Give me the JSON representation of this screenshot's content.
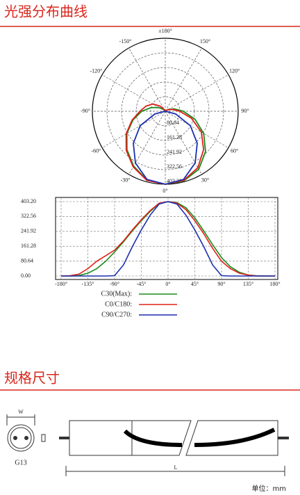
{
  "header1": "光强分布曲线",
  "header2": "规格尺寸",
  "chart_data": [
    {
      "type": "polar",
      "x": [
        -180,
        -165,
        -150,
        -135,
        -120,
        -105,
        -90,
        -75,
        -60,
        -45,
        -30,
        -15,
        0,
        15,
        30,
        45,
        60,
        75,
        90,
        105,
        120,
        135,
        150,
        165,
        180
      ],
      "rlim": [
        0,
        403.2
      ],
      "rticks": [
        80.64,
        161.28,
        241.92,
        322.56,
        {
          "value": 403.2,
          "label": "403.20"
        }
      ],
      "angleticks": [
        {
          "value": 180,
          "label": "±180°"
        },
        {
          "value": -150,
          "label": "-150°"
        },
        {
          "value": 150,
          "label": "150°"
        },
        {
          "value": -120,
          "label": "-120°"
        },
        {
          "value": 120,
          "label": "120°"
        },
        {
          "value": -90,
          "label": "-90°"
        },
        {
          "value": 90,
          "label": "90°"
        },
        {
          "value": -60,
          "label": "-60°"
        },
        {
          "value": 60,
          "label": "60°"
        },
        {
          "value": -30,
          "label": "-30°"
        },
        {
          "value": 30,
          "label": "30°"
        },
        {
          "value": 0,
          "label": "0°"
        }
      ],
      "series": [
        {
          "name": "C30(Max):",
          "color": "#1a8a1a",
          "values": [
            0,
            0,
            3,
            15,
            40,
            80,
            130,
            185,
            245,
            300,
            350,
            393,
            403.2,
            398,
            370,
            315,
            245,
            170,
            100,
            50,
            20,
            5,
            1,
            0,
            0
          ]
        },
        {
          "name": "C0/C180:",
          "color": "#e0201a",
          "values": [
            0,
            2,
            10,
            40,
            80,
            110,
            140,
            190,
            250,
            305,
            355,
            395,
            403.2,
            395,
            360,
            300,
            230,
            150,
            80,
            40,
            15,
            5,
            0,
            0,
            0
          ]
        },
        {
          "name": "C90/C270:",
          "color": "#1a2fb0",
          "values": [
            0,
            0,
            0,
            0,
            0,
            0,
            2,
            60,
            160,
            250,
            330,
            390,
            403.2,
            390,
            330,
            250,
            160,
            60,
            2,
            0,
            0,
            0,
            0,
            0,
            0
          ]
        }
      ]
    },
    {
      "type": "line",
      "x": [
        -180,
        -165,
        -150,
        -135,
        -120,
        -105,
        -90,
        -75,
        -60,
        -45,
        -30,
        -15,
        0,
        15,
        30,
        45,
        60,
        75,
        90,
        105,
        120,
        135,
        150,
        165,
        180
      ],
      "xlim": [
        -180,
        180
      ],
      "ylim": [
        0,
        403.2
      ],
      "xticks": [
        {
          "value": -180,
          "label": "-180°"
        },
        {
          "value": -135,
          "label": "-135°"
        },
        {
          "value": -90,
          "label": "-90°"
        },
        {
          "value": -45,
          "label": "-45°"
        },
        {
          "value": 0,
          "label": "0°"
        },
        {
          "value": 45,
          "label": "45°"
        },
        {
          "value": 90,
          "label": "90°"
        },
        {
          "value": 135,
          "label": "135°"
        },
        {
          "value": 180,
          "label": "180°"
        }
      ],
      "yticks": [
        {
          "value": 0,
          "label": "0.00"
        },
        80.64,
        161.28,
        241.92,
        322.56,
        {
          "value": 403.2,
          "label": "403.20"
        }
      ],
      "grid": true,
      "series": [
        {
          "name": "C30(Max):",
          "color": "#1a8a1a",
          "values": [
            0,
            0,
            3,
            15,
            40,
            80,
            130,
            185,
            245,
            300,
            350,
            393,
            403.2,
            398,
            370,
            315,
            245,
            170,
            100,
            50,
            20,
            5,
            1,
            0,
            0
          ]
        },
        {
          "name": "C0/C180:",
          "color": "#e0201a",
          "values": [
            0,
            2,
            10,
            40,
            80,
            110,
            140,
            190,
            250,
            305,
            355,
            395,
            403.2,
            395,
            360,
            300,
            230,
            150,
            80,
            40,
            15,
            5,
            0,
            0,
            0
          ]
        },
        {
          "name": "C90/C270:",
          "color": "#1a2fb0",
          "values": [
            0,
            0,
            0,
            0,
            0,
            0,
            2,
            60,
            160,
            250,
            330,
            390,
            403.2,
            390,
            330,
            250,
            160,
            60,
            2,
            0,
            0,
            0,
            0,
            0,
            0
          ]
        }
      ]
    }
  ],
  "drawing": {
    "width_label": "W",
    "length_label": "L",
    "cap_label": "G13",
    "unit": "单位：mm"
  }
}
